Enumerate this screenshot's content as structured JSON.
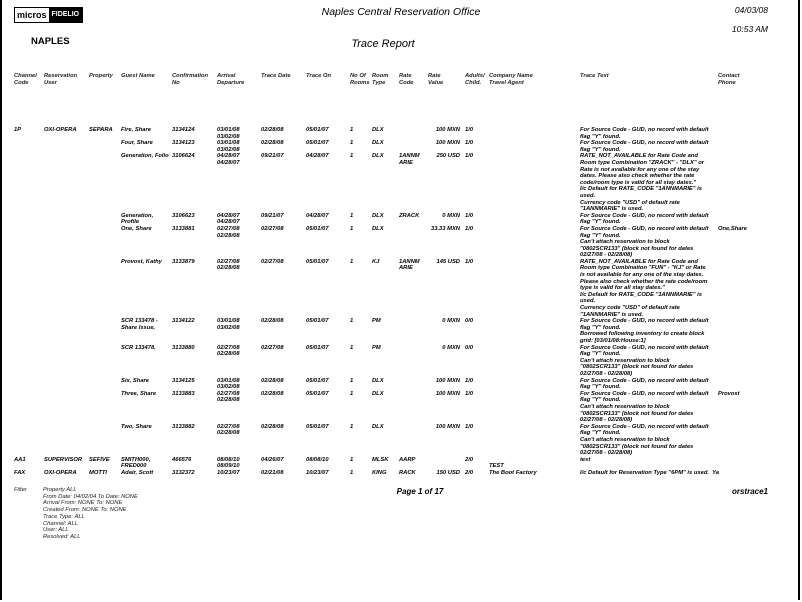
{
  "header": {
    "logo_left": "micros",
    "logo_right": "FIDELIO",
    "office": "Naples Central Reservation Office",
    "date": "04/03/08",
    "time": "10:53 AM",
    "property": "NAPLES",
    "report_title": "Trace Report"
  },
  "columns": [
    "Channel\nCode",
    "Reservation\nUser",
    "Property",
    "Guest Name",
    "Confirmation\nNo",
    "Arrival\nDeparture",
    "Trace Date",
    "Trace On",
    "No Of\nRooms",
    "Room\nType",
    "Rate\nCode",
    "Rate\nValue",
    "Adults/\nChild.",
    "Company Name\nTravel Agent",
    "Trace Text",
    "Contact\nPhone"
  ],
  "rows": [
    {
      "channel": "1P",
      "user": "OXI-OPERA",
      "property": "SEPARA",
      "guest": "Fire, Share",
      "conf": "3134124",
      "dates": "03/01/08\n03/02/08",
      "trace_date": "02/28/08",
      "trace_on": "05/01/07",
      "rooms": "1",
      "room_type": "DLX",
      "rate_code": "",
      "rate_value": "100 MXN",
      "adults": "1/0",
      "company": "",
      "trace_text": "For Source Code - GUD, no record with default\nflag \"Y\" found.",
      "contact": ""
    },
    {
      "channel": "",
      "user": "",
      "property": "",
      "guest": "Four, Share",
      "conf": "3134123",
      "dates": "03/01/08\n03/02/08",
      "trace_date": "02/28/08",
      "trace_on": "05/01/07",
      "rooms": "1",
      "room_type": "DLX",
      "rate_code": "",
      "rate_value": "100 MXN",
      "adults": "1/0",
      "company": "",
      "trace_text": "For Source Code - GUD, no record with default\nflag \"Y\" found.",
      "contact": ""
    },
    {
      "channel": "",
      "user": "",
      "property": "",
      "guest": "Generation, Folio",
      "conf": "3106624",
      "dates": "04/28/07\n04/28/07",
      "trace_date": "09/21/07",
      "trace_on": "04/28/07",
      "rooms": "1",
      "room_type": "DLX",
      "rate_code": "1ANNM\nARIE",
      "rate_value": "250 USD",
      "adults": "1/0",
      "company": "",
      "trace_text": "RATE_NOT_AVAILABLE for Rate Code and\nRoom type Combination \"ZRACK\" - \"DLX\" or\nRate is not available for any one of the stay\ndates. Please also check whether the rate\ncode/room type is valid for all stay dates.\"\nI/c Default for RATE_CODE \"1ANNMARIE\" is\nused.\nCurrency code \"USD\" of default rate\n\"1ANNMARIE\" is used.",
      "contact": ""
    },
    {
      "channel": "",
      "user": "",
      "property": "",
      "guest": "Generation,\nProfile",
      "conf": "3106623",
      "dates": "04/28/07\n04/28/07",
      "trace_date": "09/21/07",
      "trace_on": "04/28/07",
      "rooms": "1",
      "room_type": "DLX",
      "rate_code": "ZRACK",
      "rate_value": "0 MXN",
      "adults": "1/0",
      "company": "",
      "trace_text": "For Source Code - GUD, no record with default\nflag \"Y\" found.",
      "contact": ""
    },
    {
      "channel": "",
      "user": "",
      "property": "",
      "guest": "One, Share",
      "conf": "3133881",
      "dates": "02/27/08\n02/28/08",
      "trace_date": "02/27/08",
      "trace_on": "05/01/07",
      "rooms": "1",
      "room_type": "DLX",
      "rate_code": "",
      "rate_value": "33.33 MXN",
      "adults": "1/0",
      "company": "",
      "trace_text": "For Source Code - GUD, no record with default\nflag \"Y\" found.\nCan't attach reservation to block\n\"0802SCR133\" (block not found for dates\n02/27/08 - 02/28/08)",
      "contact": "One,Share"
    },
    {
      "channel": "",
      "user": "",
      "property": "",
      "guest": "Provost, Kathy",
      "conf": "3133879",
      "dates": "02/27/08\n02/28/08",
      "trace_date": "02/27/08",
      "trace_on": "05/01/07",
      "rooms": "1",
      "room_type": "KJ",
      "rate_code": "1ANNM\nARIE",
      "rate_value": "145 USD",
      "adults": "1/0",
      "company": "",
      "trace_text": "RATE_NOT_AVAILABLE for Rate Code and\nRoom type Combination \"FUN\" - \"KJ\" or Rate\nis not available for any one of the stay dates.\nPlease also check whether the rate code/room\ntype is valid for all stay dates.\"\nI/c Default for RATE_CODE \"1ANNMARIE\" is\nused.\nCurrency code \"USD\" of default rate\n\"1ANNMARIE\" is used.",
      "contact": ""
    },
    {
      "channel": "",
      "user": "",
      "property": "",
      "guest": "SCR 133478 -\nShare Issue,",
      "conf": "3134122",
      "dates": "03/01/08\n03/02/08",
      "trace_date": "02/28/08",
      "trace_on": "05/01/07",
      "rooms": "1",
      "room_type": "PM",
      "rate_code": "",
      "rate_value": "0 MXN",
      "adults": "0/0",
      "company": "",
      "trace_text": "For Source Code - GUD, no record with default\nflag \"Y\" found.\nBorrowed following inventory to create block\ngrid: [03/01/08:House:1]",
      "contact": ""
    },
    {
      "channel": "",
      "user": "",
      "property": "",
      "guest": "SCR 133478,",
      "conf": "3133880",
      "dates": "02/27/08\n02/28/08",
      "trace_date": "02/27/08",
      "trace_on": "05/01/07",
      "rooms": "1",
      "room_type": "PM",
      "rate_code": "",
      "rate_value": "0 MXN",
      "adults": "0/0",
      "company": "",
      "trace_text": "For Source Code - GUD, no record with default\nflag \"Y\" found.\nCan't attach reservation to block\n\"0802SCR133\" (block not found for dates\n02/27/08 - 02/28/08)",
      "contact": ""
    },
    {
      "channel": "",
      "user": "",
      "property": "",
      "guest": "Six, Share",
      "conf": "3134125",
      "dates": "03/01/08\n03/02/08",
      "trace_date": "02/28/08",
      "trace_on": "05/01/07",
      "rooms": "1",
      "room_type": "DLX",
      "rate_code": "",
      "rate_value": "100 MXN",
      "adults": "1/0",
      "company": "",
      "trace_text": "For Source Code - GUD, no record with default\nflag \"Y\" found.",
      "contact": ""
    },
    {
      "channel": "",
      "user": "",
      "property": "",
      "guest": "Three, Share",
      "conf": "3133883",
      "dates": "02/27/08\n02/28/08",
      "trace_date": "02/28/08",
      "trace_on": "05/01/07",
      "rooms": "1",
      "room_type": "DLX",
      "rate_code": "",
      "rate_value": "100 MXN",
      "adults": "1/0",
      "company": "",
      "trace_text": "For Source Code - GUD, no record with default\nflag \"Y\" found.\nCan't attach reservation to block\n\"0802SCR133\" (block not found for dates\n02/27/08 - 02/28/08)",
      "contact": "Provost"
    },
    {
      "channel": "",
      "user": "",
      "property": "",
      "guest": "Two, Share",
      "conf": "3133882",
      "dates": "02/27/08\n02/28/08",
      "trace_date": "02/28/08",
      "trace_on": "05/01/07",
      "rooms": "1",
      "room_type": "DLX",
      "rate_code": "",
      "rate_value": "100 MXN",
      "adults": "1/0",
      "company": "",
      "trace_text": "For Source Code - GUD, no record with default\nflag \"Y\" found.\nCan't attach reservation to block\n\"0802SCR133\" (block not found for dates\n02/27/08 - 02/28/08)",
      "contact": ""
    },
    {
      "channel": "AA1",
      "user": "SUPERVISOR",
      "property": "SEFIVE",
      "guest": "SMITH000,\nFRED000",
      "conf": "466576",
      "dates": "08/08/10\n08/09/10",
      "trace_date": "04/26/07",
      "trace_on": "08/08/10",
      "rooms": "1",
      "room_type": "MLSK",
      "rate_code": "AARP",
      "rate_value": "",
      "adults": "2/0",
      "company": "TEST",
      "trace_text": "test",
      "contact": ""
    },
    {
      "channel": "FAX",
      "user": "OXI-OPERA",
      "property": "MOTTI",
      "guest": "Adair, Scott",
      "conf": "3132372",
      "dates": "10/23/07",
      "trace_date": "02/21/08",
      "trace_on": "10/23/07",
      "rooms": "1",
      "room_type": "KING",
      "rate_code": "RACK",
      "rate_value": "150 USD",
      "adults": "2/0",
      "company": "The Boot Factory",
      "trace_text": "I/c Default for Reservation Type \"6PM\" is used.  Ya",
      "contact": ""
    }
  ],
  "footer": {
    "filter_label": "Filter",
    "filters": [
      "Property  ALL",
      "From Date:  04/02/04  To Date:  NONE",
      "Arrival From:  NONE  To:  NONE",
      "Created From:  NONE  To:  NONE",
      "Trace Type:  ALL",
      "Channel:  ALL",
      "User:  ALL",
      "Resolved:  ALL"
    ],
    "page": "Page 1 of 17",
    "report_code": "orstrace1"
  }
}
